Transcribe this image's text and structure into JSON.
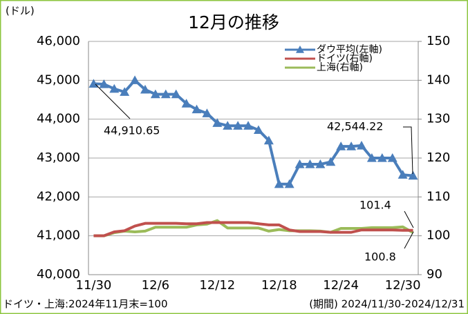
{
  "chart_data": {
    "type": "line",
    "title": "12月の推移",
    "y_label": "(ドル)",
    "footnote_left": "ドイツ・上海:2024年11月末=100",
    "footnote_right": "(期間) 2024/11/30-2024/12/31",
    "categories": [
      "11/30",
      null,
      null,
      null,
      null,
      null,
      "12/6",
      null,
      null,
      null,
      null,
      null,
      "12/12",
      null,
      null,
      null,
      null,
      null,
      "12/18",
      null,
      null,
      null,
      null,
      null,
      "12/24",
      null,
      null,
      null,
      null,
      null,
      "12/30",
      null
    ],
    "series": [
      {
        "name": "ダウ平均(左軸)",
        "color": "#4a7ebb",
        "marker": "triangle",
        "axis": "y",
        "values": [
          44910.65,
          44900,
          44780,
          44700,
          45000,
          44760,
          44640,
          44640,
          44640,
          44400,
          44250,
          44150,
          43900,
          43830,
          43830,
          43830,
          43720,
          43450,
          42330,
          42330,
          42840,
          42840,
          42840,
          42900,
          43300,
          43300,
          43320,
          43000,
          43000,
          43000,
          42570,
          42544.22
        ]
      },
      {
        "name": "ドイツ(右軸)",
        "color": "#c0504d",
        "axis": "y2",
        "values": [
          100,
          100,
          101,
          101.3,
          102.5,
          103.2,
          103.2,
          103.2,
          103.2,
          103.1,
          103.1,
          103.4,
          103.4,
          103.4,
          103.4,
          103.4,
          103.1,
          102.8,
          102.8,
          101.5,
          101.1,
          101.1,
          101.1,
          100.9,
          100.9,
          100.9,
          101.5,
          101.5,
          101.5,
          101.5,
          101.4,
          101.4
        ]
      },
      {
        "name": "上海(右軸)",
        "color": "#9bbb59",
        "axis": "y2",
        "values": [
          100,
          100,
          100.8,
          101.2,
          101,
          101.2,
          102.2,
          102.2,
          102.2,
          102.2,
          102.8,
          103,
          103.9,
          102,
          102,
          102,
          102,
          101.2,
          101.6,
          101.3,
          101.3,
          101.3,
          101.2,
          100.9,
          101.9,
          101.9,
          101.9,
          102.1,
          102.1,
          102.1,
          102.3,
          100.8
        ]
      }
    ],
    "annotations": [
      "44,910.65",
      "42,544.22",
      "101.4",
      "100.8"
    ],
    "ylim": [
      40000,
      46000
    ],
    "yticks": [
      {
        "value": 40000,
        "label": "40,000"
      },
      {
        "value": 41000,
        "label": "41,000"
      },
      {
        "value": 42000,
        "label": "42,000"
      },
      {
        "value": 43000,
        "label": "43,000"
      },
      {
        "value": 44000,
        "label": "44,000"
      },
      {
        "value": 45000,
        "label": "45,000"
      },
      {
        "value": 46000,
        "label": "46,000"
      }
    ],
    "y2lim": [
      90,
      150
    ],
    "y2ticks": [
      90,
      100,
      110,
      120,
      130,
      140,
      150
    ],
    "grid": true,
    "legend": "upper right"
  }
}
